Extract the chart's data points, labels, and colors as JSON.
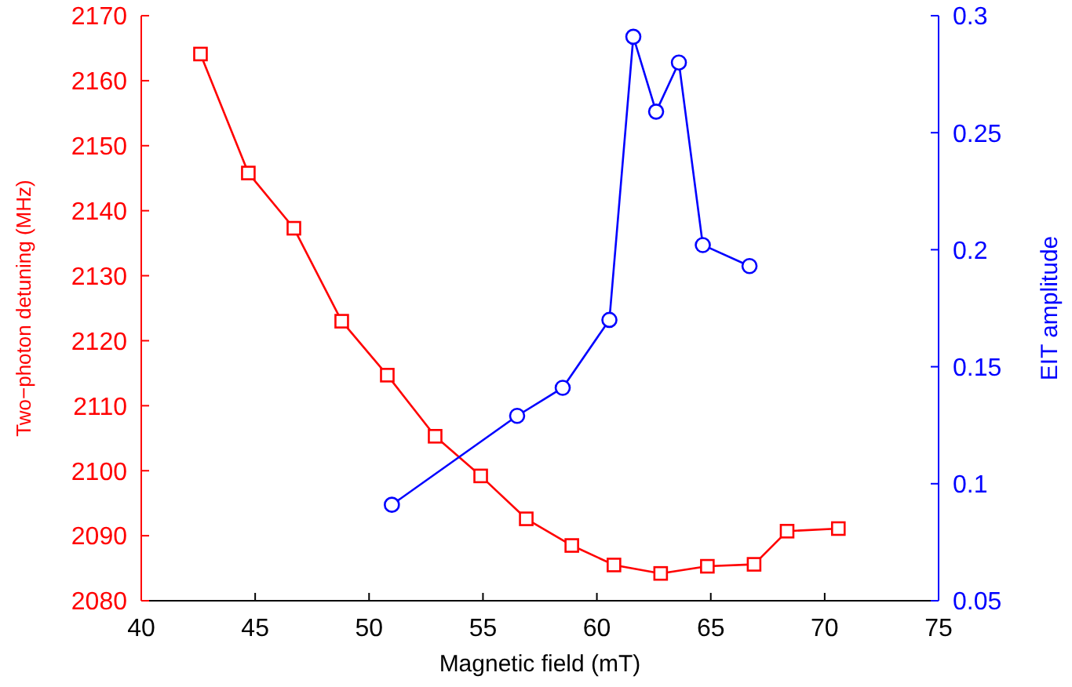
{
  "chart_data": {
    "type": "line",
    "xlabel": "Magnetic field (mT)",
    "ylabel": "Two−photon detuning (MHz)",
    "y2label": "EIT amplitude",
    "xlim": [
      40,
      75
    ],
    "xticks": [
      40,
      45,
      50,
      55,
      60,
      65,
      70,
      75
    ],
    "ylim": [
      2080,
      2170
    ],
    "yticks": [
      2080,
      2090,
      2100,
      2110,
      2120,
      2130,
      2140,
      2150,
      2160,
      2170
    ],
    "y2lim": [
      0.05,
      0.3
    ],
    "y2ticks": [
      0.05,
      0.1,
      0.15,
      0.2,
      0.25,
      0.3
    ],
    "line_style": "solid",
    "series": [
      {
        "color": "#ff0000",
        "marker": "square",
        "axis": "y",
        "x": [
          42.6,
          44.7,
          46.7,
          48.8,
          50.8,
          52.9,
          54.9,
          56.9,
          58.9,
          60.75,
          62.8,
          64.85,
          66.9,
          68.35,
          70.6
        ],
        "values": [
          2164.1,
          2145.8,
          2137.3,
          2123.0,
          2114.7,
          2105.3,
          2099.2,
          2092.6,
          2088.5,
          2085.5,
          2084.2,
          2085.3,
          2085.6,
          2090.7,
          2091.1
        ]
      },
      {
        "color": "#0000ff",
        "marker": "circle",
        "axis": "y2",
        "x": [
          51.0,
          56.5,
          58.5,
          60.55,
          61.6,
          62.6,
          63.6,
          64.65,
          66.7
        ],
        "values": [
          0.091,
          0.129,
          0.141,
          0.17,
          0.291,
          0.259,
          0.28,
          0.202,
          0.193
        ]
      }
    ]
  }
}
